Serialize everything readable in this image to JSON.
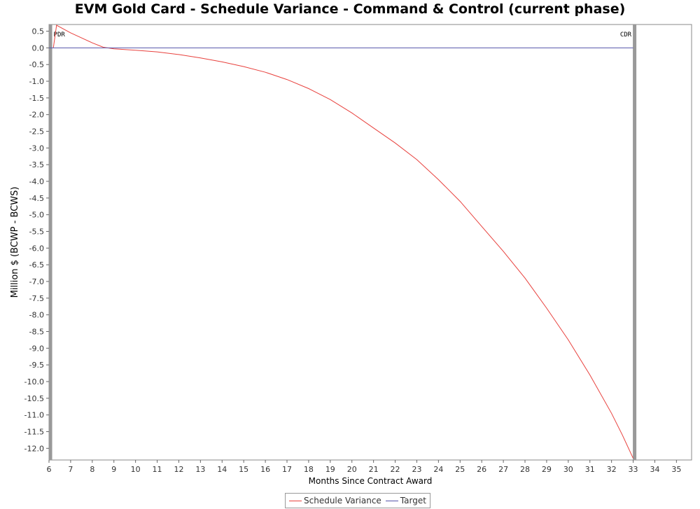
{
  "chart_data": {
    "type": "line",
    "title": "EVM Gold Card - Schedule Variance - Command & Control (current phase)",
    "xlabel": "Months Since Contract Award",
    "ylabel": "Million $ (BCWP - BCWS)",
    "xlim": [
      6,
      35.7
    ],
    "ylim": [
      -12.35,
      0.7
    ],
    "x_ticks": [
      6,
      7,
      8,
      9,
      10,
      11,
      12,
      13,
      14,
      15,
      16,
      17,
      18,
      19,
      20,
      21,
      22,
      23,
      24,
      25,
      26,
      27,
      28,
      29,
      30,
      31,
      32,
      33,
      34,
      35
    ],
    "y_ticks": [
      0.5,
      0.0,
      -0.5,
      -1.0,
      -1.5,
      -2.0,
      -2.5,
      -3.0,
      -3.5,
      -4.0,
      -4.5,
      -5.0,
      -5.5,
      -6.0,
      -6.5,
      -7.0,
      -7.5,
      -8.0,
      -8.5,
      -9.0,
      -9.5,
      -10.0,
      -10.5,
      -11.0,
      -11.5,
      -12.0
    ],
    "grid": false,
    "legend_position": "bottom",
    "series": [
      {
        "name": "Schedule Variance",
        "color": "#e8413d",
        "x": [
          6.2,
          6.35,
          7.0,
          7.5,
          8.0,
          8.5,
          9.0,
          10.0,
          11.0,
          12.0,
          13.0,
          14.0,
          15.0,
          16.0,
          17.0,
          18.0,
          19.0,
          20.0,
          21.0,
          22.0,
          23.0,
          24.0,
          25.0,
          26.0,
          27.0,
          28.0,
          29.0,
          30.0,
          31.0,
          32.0,
          32.5,
          33.0
        ],
        "y": [
          0.0,
          0.68,
          0.45,
          0.3,
          0.15,
          0.02,
          -0.03,
          -0.07,
          -0.12,
          -0.2,
          -0.3,
          -0.42,
          -0.56,
          -0.73,
          -0.95,
          -1.22,
          -1.55,
          -1.95,
          -2.4,
          -2.85,
          -3.35,
          -3.95,
          -4.6,
          -5.35,
          -6.1,
          -6.9,
          -7.8,
          -8.75,
          -9.8,
          -10.95,
          -11.6,
          -12.3
        ]
      },
      {
        "name": "Target",
        "color": "#5555aa",
        "x": [
          6.0,
          33.0
        ],
        "y": [
          0.0,
          0.0
        ]
      }
    ],
    "markers": [
      {
        "label": "PDR",
        "x": 6.05
      },
      {
        "label": "CDR",
        "x": 33.05
      }
    ]
  }
}
